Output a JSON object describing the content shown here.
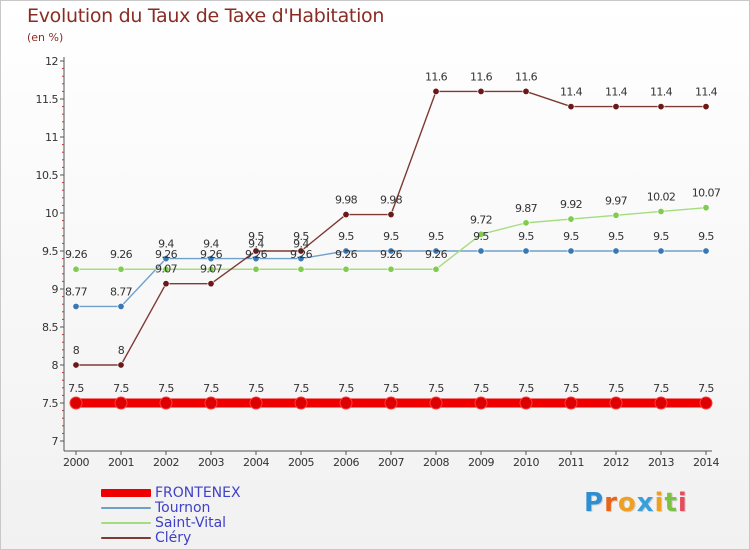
{
  "header": {
    "title": "Evolution du Taux de Taxe d'Habitation",
    "subtitle": "(en %)"
  },
  "logo": {
    "letters": [
      "P",
      "r",
      "o",
      "x",
      "i",
      "t",
      "i"
    ],
    "colors": [
      "#2f8ed0",
      "#e8641a",
      "#f0a020",
      "#3aa0dc",
      "#f0a020",
      "#7cc242",
      "#e84c5c"
    ]
  },
  "chart_data": {
    "type": "line",
    "title": "Evolution du Taux de Taxe d'Habitation",
    "subtitle": "(en %)",
    "xlabel": "",
    "ylabel": "",
    "x": [
      "2000",
      "2001",
      "2002",
      "2003",
      "2004",
      "2005",
      "2006",
      "2007",
      "2008",
      "2009",
      "2010",
      "2011",
      "2012",
      "2013",
      "2014"
    ],
    "y_ticks": [
      "7",
      "7.5",
      "8",
      "8.5",
      "9",
      "9.5",
      "10",
      "10.5",
      "11",
      "11.5",
      "12"
    ],
    "ylim": [
      7,
      12
    ],
    "grid": false,
    "legend_position": "bottom-left",
    "series": [
      {
        "name": "FRONTENEX",
        "color": "#ee0000",
        "point_color": "#dd0000",
        "thick": true,
        "values": [
          7.5,
          7.5,
          7.5,
          7.5,
          7.5,
          7.5,
          7.5,
          7.5,
          7.5,
          7.5,
          7.5,
          7.5,
          7.5,
          7.5,
          7.5
        ],
        "labels": [
          "7.5",
          "7.5",
          "7.5",
          "7.5",
          "7.5",
          "7.5",
          "7.5",
          "7.5",
          "7.5",
          "7.5",
          "7.5",
          "7.5",
          "7.5",
          "7.5",
          "7.5"
        ]
      },
      {
        "name": "Tournon",
        "color": "#6f9fcb",
        "point_color": "#3a78b4",
        "thick": false,
        "values": [
          8.77,
          8.77,
          9.4,
          9.4,
          9.4,
          9.4,
          9.5,
          9.5,
          9.5,
          9.5,
          9.5,
          9.5,
          9.5,
          9.5,
          9.5
        ],
        "labels": [
          "8.77",
          "8.77",
          "9.4",
          "9.4",
          "9.4",
          "9.4",
          "9.5",
          "9.5",
          "9.5",
          "9.5",
          "9.5",
          "9.5",
          "9.5",
          "9.5",
          "9.5"
        ]
      },
      {
        "name": "Saint-Vital",
        "color": "#a6dc80",
        "point_color": "#80cc50",
        "thick": false,
        "values": [
          9.26,
          9.26,
          9.26,
          9.26,
          9.26,
          9.26,
          9.26,
          9.26,
          9.26,
          9.72,
          9.87,
          9.92,
          9.97,
          10.02,
          10.07
        ],
        "labels": [
          "9.26",
          "9.26",
          "9.26",
          "9.26",
          "9.26",
          "9.26",
          "9.26",
          "9.26",
          "9.26",
          "9.72",
          "9.87",
          "9.92",
          "9.97",
          "10.02",
          "10.07"
        ]
      },
      {
        "name": "Cléry",
        "color": "#7e3a34",
        "point_color": "#6a1818",
        "thick": false,
        "values": [
          8,
          8,
          9.07,
          9.07,
          9.5,
          9.5,
          9.98,
          9.98,
          11.6,
          11.6,
          11.6,
          11.4,
          11.4,
          11.4,
          11.4
        ],
        "labels": [
          "8",
          "8",
          "9.07",
          "9.07",
          "9.5",
          "9.5",
          "9.98",
          "9.98",
          "11.6",
          "11.6",
          "11.6",
          "11.4",
          "11.4",
          "11.4",
          "11.4"
        ]
      }
    ]
  }
}
